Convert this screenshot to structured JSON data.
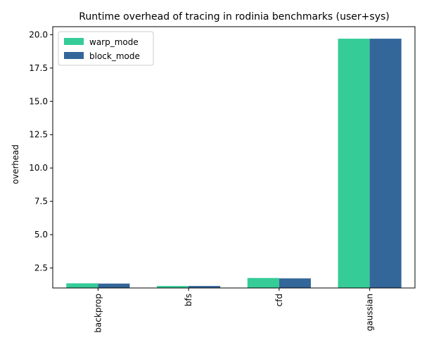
{
  "chart_data": {
    "type": "bar",
    "title": "Runtime overhead of tracing in rodinia benchmarks (user+sys)",
    "xlabel": "",
    "ylabel": "overhead",
    "categories": [
      "backprop",
      "bfs",
      "cfd",
      "gaussian"
    ],
    "series": [
      {
        "name": "warp_mode",
        "color": "#35cc98",
        "values": [
          1.35,
          1.15,
          1.75,
          19.7
        ]
      },
      {
        "name": "block_mode",
        "color": "#336699",
        "values": [
          1.33,
          1.15,
          1.72,
          19.7
        ]
      }
    ],
    "ylim": [
      1.0,
      20.6
    ],
    "yticks": [
      "2.5",
      "5.0",
      "7.5",
      "10.0",
      "12.5",
      "15.0",
      "17.5",
      "20.0"
    ],
    "legend_position": "top-left",
    "grid": false,
    "x_tick_rotation": "vertical"
  }
}
